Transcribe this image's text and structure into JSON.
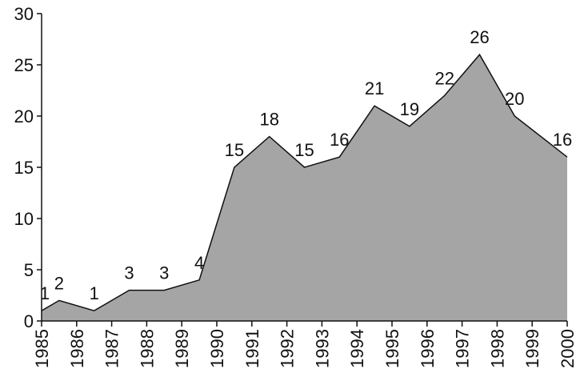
{
  "chart_data": {
    "type": "area",
    "x": [
      1985,
      1985.5,
      1986.5,
      1987.5,
      1988.5,
      1989.5,
      1990.5,
      1991.5,
      1992.5,
      1993.5,
      1994.5,
      1995.5,
      1996.5,
      1997.5,
      1998.5,
      2000
    ],
    "values": [
      1,
      2,
      1,
      3,
      3,
      4,
      15,
      18,
      15,
      16,
      21,
      19,
      22,
      26,
      20,
      16
    ],
    "color": "#a5a5a5",
    "xlim": [
      1985,
      2000
    ],
    "xticks": [
      1985,
      1986,
      1987,
      1988,
      1989,
      1990,
      1991,
      1992,
      1993,
      1994,
      1995,
      1996,
      1997,
      1998,
      1999,
      2000
    ],
    "ylim": [
      0,
      30
    ],
    "yticks": [
      0,
      5,
      10,
      15,
      20,
      25,
      30
    ]
  }
}
